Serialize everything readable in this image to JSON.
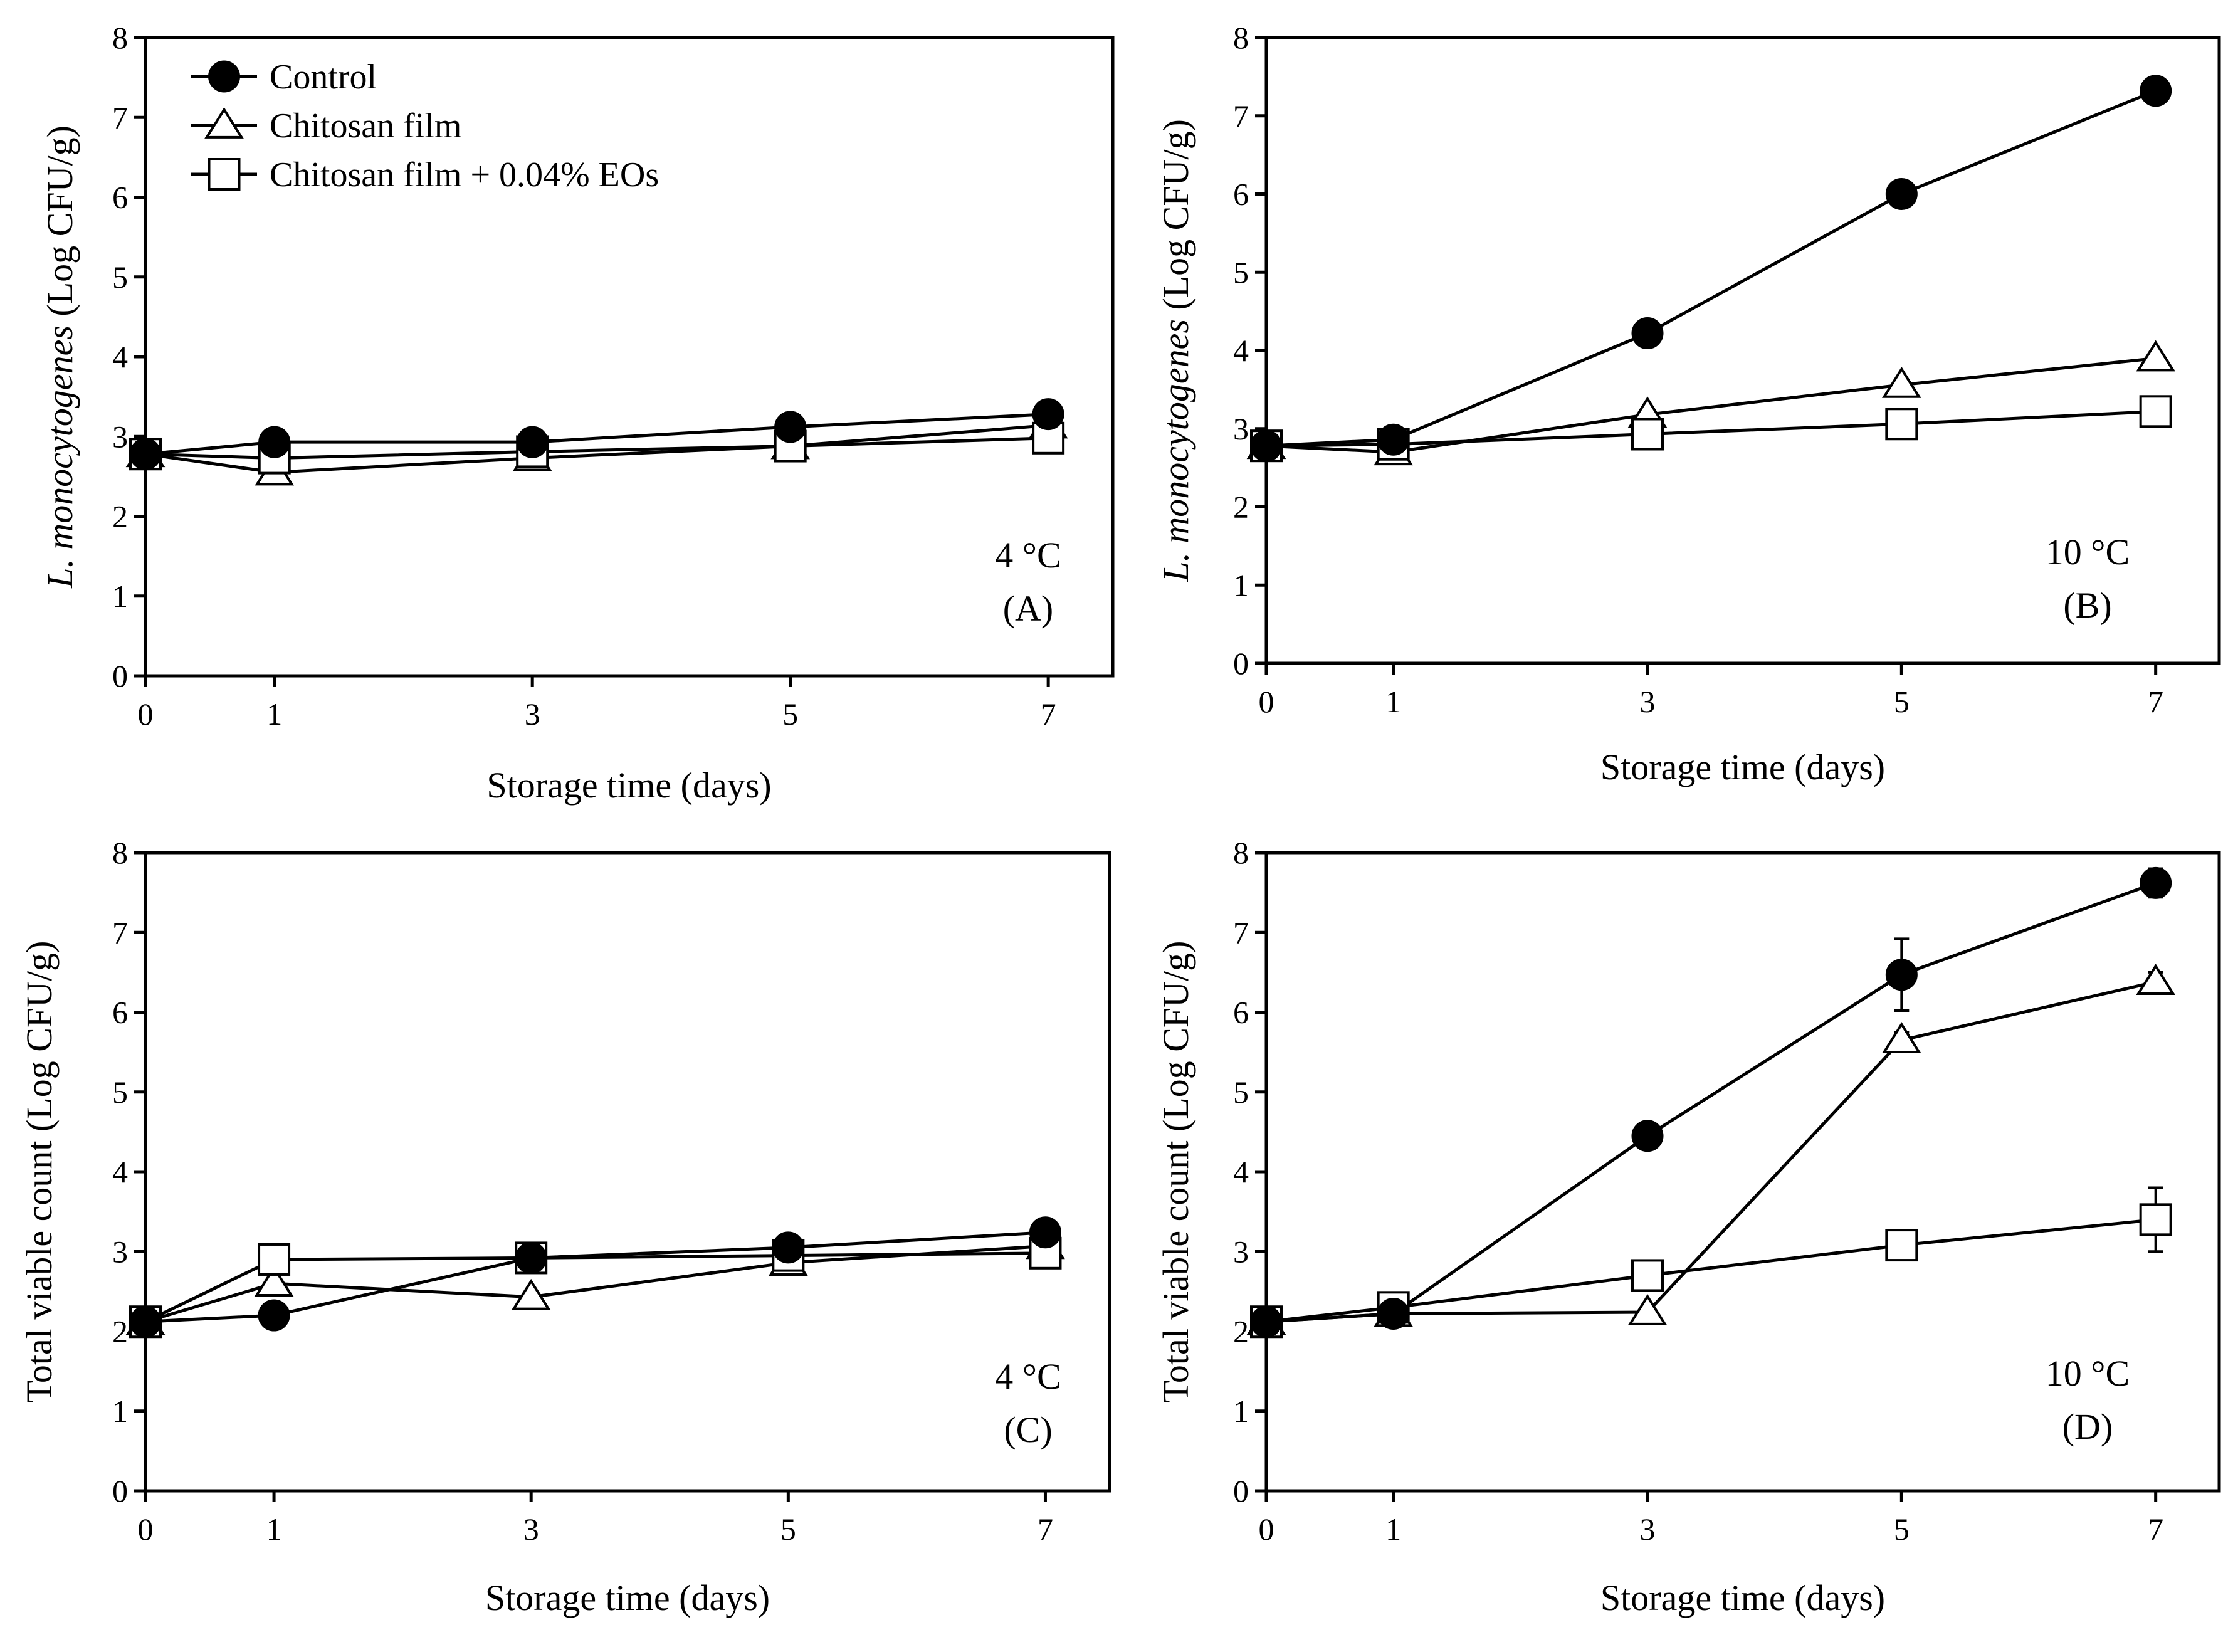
{
  "figure": {
    "legend": [
      {
        "series": "control",
        "label": "Control",
        "marker": "filled-circle"
      },
      {
        "series": "chitosan",
        "label": "Chitosan film",
        "marker": "open-triangle"
      },
      {
        "series": "chitosan_eos",
        "label": "Chitosan film + 0.04% EOs",
        "marker": "open-square"
      }
    ]
  },
  "chart_data": [
    {
      "type": "line",
      "panel": "A",
      "annotation_temp": "4 °C",
      "annotation_panel": "(A)",
      "ylabel_italic": "L. monocytogenes",
      "ylabel_rest": " (Log CFU/g)",
      "xlabel": "Storage time (days)",
      "xticks": [
        0,
        1,
        3,
        5,
        7
      ],
      "yticks": [
        0,
        1,
        2,
        3,
        4,
        5,
        6,
        7,
        8
      ],
      "xlim": [
        0,
        7.5
      ],
      "ylim": [
        0,
        8
      ],
      "x": [
        0,
        1,
        3,
        5,
        7
      ],
      "series": [
        {
          "name": "Control",
          "key": "control",
          "values": [
            2.78,
            2.93,
            2.93,
            3.12,
            3.28
          ],
          "errors": [
            0,
            0,
            0,
            0,
            0
          ]
        },
        {
          "name": "Chitosan film",
          "key": "chitosan",
          "values": [
            2.78,
            2.55,
            2.73,
            2.88,
            3.14
          ],
          "errors": [
            0,
            0,
            0,
            0,
            0
          ]
        },
        {
          "name": "Chitosan film + 0.04% EOs",
          "key": "chitosan_eos",
          "values": [
            2.78,
            2.73,
            2.81,
            2.88,
            2.98
          ],
          "errors": [
            0,
            0,
            0,
            0,
            0
          ]
        }
      ]
    },
    {
      "type": "line",
      "panel": "B",
      "annotation_temp": "10 °C",
      "annotation_panel": "(B)",
      "ylabel_italic": "L. monocytogenes",
      "ylabel_rest": " (Log CFU/g)",
      "xlabel": "Storage time (days)",
      "xticks": [
        0,
        1,
        3,
        5,
        7
      ],
      "yticks": [
        0,
        1,
        2,
        3,
        4,
        5,
        6,
        7,
        8
      ],
      "xlim": [
        0,
        7.5
      ],
      "ylim": [
        0,
        8
      ],
      "x": [
        0,
        1,
        3,
        5,
        7
      ],
      "series": [
        {
          "name": "Control",
          "key": "control",
          "values": [
            2.78,
            2.86,
            4.22,
            6.0,
            7.32
          ],
          "errors": [
            0,
            0,
            0.15,
            0,
            0
          ]
        },
        {
          "name": "Chitosan film",
          "key": "chitosan",
          "values": [
            2.78,
            2.7,
            3.18,
            3.56,
            3.9
          ],
          "errors": [
            0,
            0,
            0,
            0,
            0
          ]
        },
        {
          "name": "Chitosan film + 0.04% EOs",
          "key": "chitosan_eos",
          "values": [
            2.78,
            2.8,
            2.93,
            3.06,
            3.22
          ],
          "errors": [
            0,
            0,
            0,
            0,
            0
          ]
        }
      ]
    },
    {
      "type": "line",
      "panel": "C",
      "annotation_temp": "4 °C",
      "annotation_panel": "(C)",
      "ylabel_italic": "",
      "ylabel_rest": "Total viable count (Log CFU/g)",
      "xlabel": "Storage time (days)",
      "xticks": [
        0,
        1,
        3,
        5,
        7
      ],
      "yticks": [
        0,
        1,
        2,
        3,
        4,
        5,
        6,
        7,
        8
      ],
      "xlim": [
        0,
        7.5
      ],
      "ylim": [
        0,
        8
      ],
      "x": [
        0,
        1,
        3,
        5,
        7
      ],
      "series": [
        {
          "name": "Control",
          "key": "control",
          "values": [
            2.12,
            2.2,
            2.92,
            3.05,
            3.24
          ],
          "errors": [
            0,
            0,
            0,
            0,
            0
          ]
        },
        {
          "name": "Chitosan film",
          "key": "chitosan",
          "values": [
            2.12,
            2.6,
            2.43,
            2.86,
            3.07
          ],
          "errors": [
            0,
            0,
            0,
            0,
            0
          ]
        },
        {
          "name": "Chitosan film + 0.04% EOs",
          "key": "chitosan_eos",
          "values": [
            2.12,
            2.9,
            2.92,
            2.95,
            2.98
          ],
          "errors": [
            0,
            0,
            0,
            0,
            0
          ]
        }
      ]
    },
    {
      "type": "line",
      "panel": "D",
      "annotation_temp": "10 °C",
      "annotation_panel": "(D)",
      "ylabel_italic": "",
      "ylabel_rest": "Total viable count (Log CFU/g)",
      "xlabel": "Storage time (days)",
      "xticks": [
        0,
        1,
        3,
        5,
        7
      ],
      "yticks": [
        0,
        1,
        2,
        3,
        4,
        5,
        6,
        7,
        8
      ],
      "xlim": [
        0,
        7.5
      ],
      "ylim": [
        0,
        8
      ],
      "x": [
        0,
        1,
        3,
        5,
        7
      ],
      "series": [
        {
          "name": "Control",
          "key": "control",
          "values": [
            2.12,
            2.22,
            4.45,
            6.47,
            7.62
          ],
          "errors": [
            0,
            0,
            0,
            0.45,
            0.18
          ]
        },
        {
          "name": "Chitosan film",
          "key": "chitosan",
          "values": [
            2.12,
            2.22,
            2.24,
            5.65,
            6.38
          ],
          "errors": [
            0,
            0,
            0,
            0.1,
            0.12
          ]
        },
        {
          "name": "Chitosan film + 0.04% EOs",
          "key": "chitosan_eos",
          "values": [
            2.12,
            2.3,
            2.7,
            3.08,
            3.4
          ],
          "errors": [
            0,
            0,
            0,
            0,
            0.4
          ]
        }
      ]
    }
  ]
}
